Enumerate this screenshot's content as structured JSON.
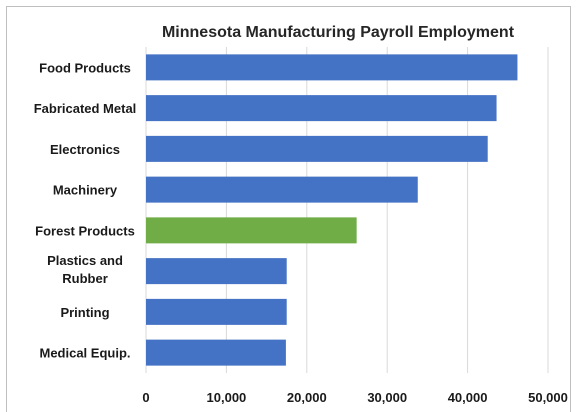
{
  "chart_data": {
    "type": "bar",
    "orientation": "horizontal",
    "title": "Minnesota Manufacturing Payroll Employment",
    "xlabel": "",
    "ylabel": "",
    "xlim": [
      0,
      50000
    ],
    "xticks": [
      0,
      10000,
      20000,
      30000,
      40000,
      50000
    ],
    "xtick_labels": [
      "0",
      "10,000",
      "20,000",
      "30,000",
      "40,000",
      "50,000"
    ],
    "grid": true,
    "legend": false,
    "categories": [
      "Food Products",
      "Fabricated Metal",
      "Electronics",
      "Machinery",
      "Forest Products",
      "Plastics and Rubber",
      "Printing",
      "Medical Equip."
    ],
    "values": [
      46200,
      43600,
      42500,
      33800,
      26200,
      17500,
      17500,
      17400
    ],
    "colors": [
      "#4472c4",
      "#4472c4",
      "#4472c4",
      "#4472c4",
      "#70ad47",
      "#4472c4",
      "#4472c4",
      "#4472c4"
    ]
  }
}
